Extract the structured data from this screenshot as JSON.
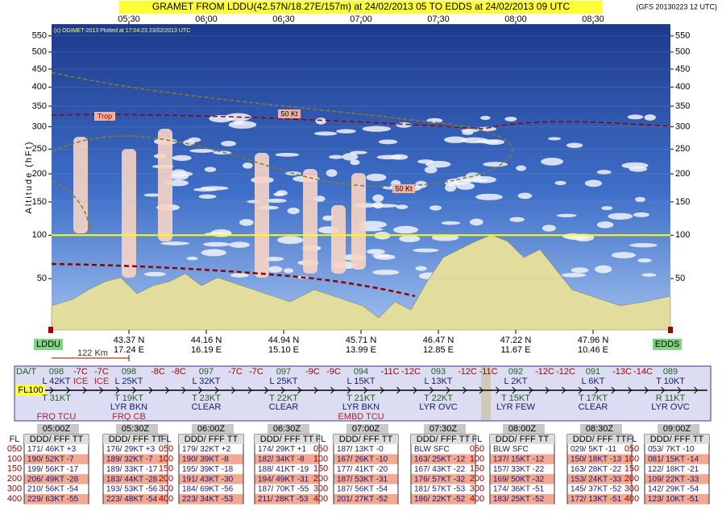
{
  "header": {
    "title": "GRAMET FROM LDDU(42.57N/18.27E/157m) at 24/02/2013 05   TO   EDDS at 24/02/2013 09 UTC",
    "model": "(GFS 20130223 12 UTC)",
    "copyright": "(c) OGIMET-2013 Plotted at 17:04:23 23/02/2013 UTC"
  },
  "plot": {
    "ylabel": "Altitude (hFt)",
    "yscale": "sqrt",
    "ylim": [
      13,
      588
    ],
    "yticks": [
      50,
      100,
      150,
      200,
      250,
      300,
      350,
      400,
      450,
      500,
      550
    ],
    "times": [
      "05:30",
      "06:00",
      "06:30",
      "07:00",
      "07:30",
      "08:00",
      "08:30"
    ],
    "trop": "Trop",
    "jets": [
      "50 Kt",
      "50 Kt"
    ]
  },
  "route": {
    "origin": "LDDU",
    "destination": "EDDS",
    "distance": "122 Km",
    "waypoints": [
      {
        "lat": "43.37 N",
        "lon": "17.24 E"
      },
      {
        "lat": "44.16 N",
        "lon": "16.19 E"
      },
      {
        "lat": "44.94 N",
        "lon": "15.10 E"
      },
      {
        "lat": "45.71 N",
        "lon": "13.99 E"
      },
      {
        "lat": "46.47 N",
        "lon": "12.85 E"
      },
      {
        "lat": "47.22 N",
        "lon": "11.67 E"
      },
      {
        "lat": "47.96 N",
        "lon": "10.46 E"
      }
    ]
  },
  "strip": {
    "label": "DA/T",
    "level": "FL100",
    "columns": [
      {
        "fl": "098",
        "upper": "L 42KT",
        "lower": "T 31KT",
        "hazard": "FRQ TCU"
      },
      {
        "fl": "098",
        "upper": "L 25KT",
        "lower": "T 19KT",
        "cloud": "LYR BKN",
        "hazard": "FRQ CB"
      },
      {
        "fl": "097",
        "upper": "L 32KT",
        "lower": "T 23KT",
        "cloud": "CLEAR"
      },
      {
        "fl": "097",
        "upper": "L 25KT",
        "lower": "T 22KT",
        "cloud": "CLEAR"
      },
      {
        "fl": "094",
        "upper": "L 15KT",
        "lower": "T 21KT",
        "cloud": "LYR BKN",
        "hazard": "EMBD TCU"
      },
      {
        "fl": "093",
        "upper": "L 13KT",
        "lower": "T 22KT",
        "cloud": "LYR OVC"
      },
      {
        "fl": "092",
        "upper": "L 2KT",
        "lower": "T 15KT",
        "cloud": "LYR FEW"
      },
      {
        "fl": "091",
        "upper": "L 6KT",
        "lower": "T 17KT",
        "cloud": "CLEAR"
      },
      {
        "fl": "089",
        "upper": "T 10KT",
        "lower": "R 11KT",
        "cloud": "LYR OVC"
      }
    ],
    "segments": [
      {
        "temps": [
          "-7C",
          "-7C"
        ],
        "ice": [
          "ICE",
          "ICE"
        ]
      },
      {
        "temps": [
          "-8C",
          "-8C"
        ]
      },
      {
        "temps": [
          "-7C",
          "-7C"
        ]
      },
      {
        "temps": [
          "-9C",
          "-9C"
        ]
      },
      {
        "temps": [
          "-11C",
          "-12C"
        ]
      },
      {
        "temps": [
          "-12C",
          "-11C"
        ]
      },
      {
        "temps": [
          "-12C",
          "-12C"
        ]
      },
      {
        "temps": [
          "-13C",
          "-14C"
        ]
      }
    ]
  },
  "tables": {
    "fl_header": "FL",
    "levels": [
      "050",
      "100",
      "150",
      "200",
      "300",
      "400"
    ],
    "columns": [
      {
        "time": "05:00Z",
        "header": "DDD/ FFF TT",
        "rows": [
          "171/ 46KT +3",
          "190/ 52KT -7",
          "199/ 56KT -17",
          "206/ 49KT -28",
          "210/ 56KT -54",
          "229/ 63KT -55"
        ]
      },
      {
        "time": "05:30Z",
        "header": "DDD/ FFF TT",
        "rows": [
          "176/ 29KT +3",
          "189/ 32KT -7",
          "189/ 33KT -17",
          "183/ 44KT -28",
          "193/ 53KT -56",
          "223/ 48KT -54"
        ]
      },
      {
        "time": "06:00Z",
        "header": "DDD/ FFF TT",
        "rows": [
          "179/ 32KT +2",
          "190/ 39KT -8",
          "195/ 39KT -18",
          "191/ 43KT -30",
          "184/ 69KT -56",
          "223/ 34KT -53"
        ]
      },
      {
        "time": "06:30Z",
        "header": "DDD/ FFF TT",
        "rows": [
          "174/ 29KT +1",
          "182/ 34KT -8",
          "188/ 41KT -19",
          "194/ 49KT -31",
          "187/ 70KT -55",
          "211/ 28KT -53"
        ]
      },
      {
        "time": "07:00Z",
        "header": "DDD/ FFF TT",
        "rows": [
          "187/ 13KT -0",
          "167/ 26KT -10",
          "177/ 41KT -20",
          "187/ 53KT -31",
          "187/ 56KT -54",
          "201/ 27KT -52"
        ]
      },
      {
        "time": "07:30Z",
        "header": "DDD/ FFF TT",
        "rows": [
          "BLW SFC",
          "163/ 25KT -12",
          "167/ 43KT -22",
          "176/ 57KT -32",
          "181/ 57KT -53",
          "186/ 22KT -52"
        ]
      },
      {
        "time": "08:00Z",
        "header": "DDD/ FFF TT",
        "rows": [
          "BLW SFC",
          "137/ 15KT -12",
          "157/ 33KT -22",
          "169/ 50KT -32",
          "174/ 36KT -51",
          "183/ 25KT -52"
        ]
      },
      {
        "time": "08:30Z",
        "header": "DDD/ FFF TT",
        "rows": [
          "029/ 5KT -11",
          "150/ 18KT -13",
          "163/ 28KT -22",
          "153/ 24KT -33",
          "145/ 37KT -52",
          "172/ 13KT -51"
        ]
      },
      {
        "time": "09:00Z",
        "header": "DDD/ FFF TT",
        "rows": [
          "053/ 7KT -10",
          "081/ 15KT -14",
          "122/ 18KT -21",
          "109/ 22KT -33",
          "142/ 29KT -54",
          "123/ 10KT -51"
        ]
      }
    ]
  }
}
